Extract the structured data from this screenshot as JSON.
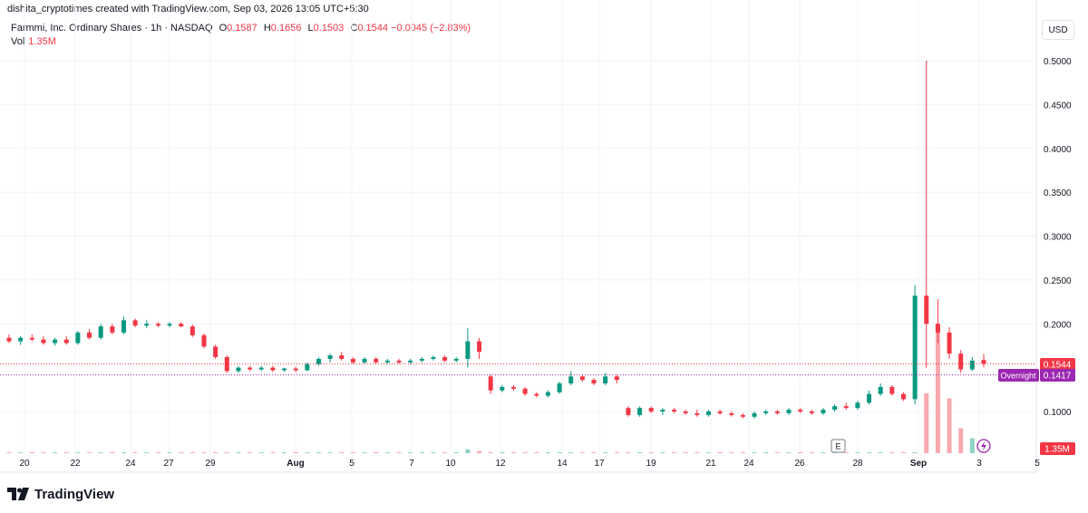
{
  "attribution": "dishita_cryptotimes created with TradingView.com, Sep 03, 2026 13:05 UTC+5:30",
  "legend": {
    "symbol": "Farmmi, Inc. Ordinary Shares · 1h · NASDAQ",
    "open_label": "O",
    "open": "0.1587",
    "high_label": "H",
    "high": "0.1656",
    "low_label": "L",
    "low": "0.1503",
    "close_label": "C",
    "close": "0.1544",
    "change": "−0.0045 (−2.83%)",
    "vol_label": "Vol",
    "vol": "1.35M"
  },
  "currency": "USD",
  "price_axis": {
    "ticks": [
      "0.5000",
      "0.4500",
      "0.4000",
      "0.3500",
      "0.3000",
      "0.2500",
      "0.2000",
      "0.1000"
    ]
  },
  "badges": {
    "last_price": "0.1544",
    "overnight_label": "Overnight",
    "overnight_price": "0.1417",
    "volume": "1.35M"
  },
  "markers": {
    "earnings": "E"
  },
  "brand": "TradingView",
  "colors": {
    "up": "#089981",
    "down": "#f23645",
    "overnight": "#9c27b0",
    "grid": "#f0f3fa"
  },
  "chart_data": {
    "type": "candlestick",
    "title": "Farmmi, Inc. Ordinary Shares · 1h · NASDAQ",
    "x_ticks": [
      "20",
      "22",
      "24",
      "27",
      "29",
      "Aug",
      "5",
      "7",
      "10",
      "12",
      "14",
      "17",
      "19",
      "21",
      "24",
      "26",
      "28",
      "Sep",
      "3",
      "5"
    ],
    "y_range": [
      0.05,
      0.52
    ],
    "last_price": 0.1544,
    "overnight_price": 0.1417,
    "series": [
      {
        "o": 0.184,
        "h": 0.188,
        "l": 0.178,
        "c": 0.18
      },
      {
        "o": 0.18,
        "h": 0.186,
        "l": 0.176,
        "c": 0.184
      },
      {
        "o": 0.184,
        "h": 0.188,
        "l": 0.18,
        "c": 0.182
      },
      {
        "o": 0.182,
        "h": 0.186,
        "l": 0.176,
        "c": 0.178
      },
      {
        "o": 0.178,
        "h": 0.184,
        "l": 0.175,
        "c": 0.182
      },
      {
        "o": 0.182,
        "h": 0.186,
        "l": 0.176,
        "c": 0.178
      },
      {
        "o": 0.178,
        "h": 0.192,
        "l": 0.176,
        "c": 0.19
      },
      {
        "o": 0.19,
        "h": 0.194,
        "l": 0.182,
        "c": 0.184
      },
      {
        "o": 0.184,
        "h": 0.2,
        "l": 0.182,
        "c": 0.197
      },
      {
        "o": 0.197,
        "h": 0.2,
        "l": 0.188,
        "c": 0.19
      },
      {
        "o": 0.19,
        "h": 0.208,
        "l": 0.188,
        "c": 0.204
      },
      {
        "o": 0.204,
        "h": 0.206,
        "l": 0.196,
        "c": 0.198
      },
      {
        "o": 0.198,
        "h": 0.204,
        "l": 0.195,
        "c": 0.2
      },
      {
        "o": 0.2,
        "h": 0.202,
        "l": 0.196,
        "c": 0.198
      },
      {
        "o": 0.198,
        "h": 0.202,
        "l": 0.196,
        "c": 0.2
      },
      {
        "o": 0.2,
        "h": 0.202,
        "l": 0.196,
        "c": 0.197
      },
      {
        "o": 0.197,
        "h": 0.199,
        "l": 0.185,
        "c": 0.187
      },
      {
        "o": 0.187,
        "h": 0.189,
        "l": 0.172,
        "c": 0.174
      },
      {
        "o": 0.174,
        "h": 0.176,
        "l": 0.16,
        "c": 0.162
      },
      {
        "o": 0.162,
        "h": 0.164,
        "l": 0.144,
        "c": 0.146
      },
      {
        "o": 0.146,
        "h": 0.152,
        "l": 0.144,
        "c": 0.15
      },
      {
        "o": 0.15,
        "h": 0.152,
        "l": 0.146,
        "c": 0.148
      },
      {
        "o": 0.148,
        "h": 0.152,
        "l": 0.146,
        "c": 0.15
      },
      {
        "o": 0.15,
        "h": 0.152,
        "l": 0.145,
        "c": 0.147
      },
      {
        "o": 0.147,
        "h": 0.15,
        "l": 0.145,
        "c": 0.149
      },
      {
        "o": 0.149,
        "h": 0.151,
        "l": 0.145,
        "c": 0.147
      },
      {
        "o": 0.147,
        "h": 0.156,
        "l": 0.146,
        "c": 0.154
      },
      {
        "o": 0.154,
        "h": 0.162,
        "l": 0.152,
        "c": 0.16
      },
      {
        "o": 0.16,
        "h": 0.166,
        "l": 0.156,
        "c": 0.164
      },
      {
        "o": 0.164,
        "h": 0.168,
        "l": 0.158,
        "c": 0.16
      },
      {
        "o": 0.16,
        "h": 0.162,
        "l": 0.154,
        "c": 0.156
      },
      {
        "o": 0.156,
        "h": 0.162,
        "l": 0.154,
        "c": 0.16
      },
      {
        "o": 0.16,
        "h": 0.162,
        "l": 0.154,
        "c": 0.156
      },
      {
        "o": 0.156,
        "h": 0.16,
        "l": 0.154,
        "c": 0.158
      },
      {
        "o": 0.158,
        "h": 0.16,
        "l": 0.154,
        "c": 0.156
      },
      {
        "o": 0.156,
        "h": 0.16,
        "l": 0.154,
        "c": 0.158
      },
      {
        "o": 0.158,
        "h": 0.162,
        "l": 0.156,
        "c": 0.16
      },
      {
        "o": 0.16,
        "h": 0.164,
        "l": 0.158,
        "c": 0.162
      },
      {
        "o": 0.162,
        "h": 0.164,
        "l": 0.156,
        "c": 0.158
      },
      {
        "o": 0.158,
        "h": 0.162,
        "l": 0.156,
        "c": 0.16
      },
      {
        "o": 0.16,
        "h": 0.195,
        "l": 0.15,
        "c": 0.18
      },
      {
        "o": 0.18,
        "h": 0.184,
        "l": 0.16,
        "c": 0.168
      },
      {
        "o": 0.14,
        "h": 0.142,
        "l": 0.12,
        "c": 0.124
      },
      {
        "o": 0.124,
        "h": 0.13,
        "l": 0.122,
        "c": 0.128
      },
      {
        "o": 0.128,
        "h": 0.13,
        "l": 0.124,
        "c": 0.126
      },
      {
        "o": 0.126,
        "h": 0.128,
        "l": 0.118,
        "c": 0.12
      },
      {
        "o": 0.12,
        "h": 0.122,
        "l": 0.116,
        "c": 0.118
      },
      {
        "o": 0.118,
        "h": 0.124,
        "l": 0.116,
        "c": 0.122
      },
      {
        "o": 0.122,
        "h": 0.134,
        "l": 0.12,
        "c": 0.132
      },
      {
        "o": 0.132,
        "h": 0.146,
        "l": 0.13,
        "c": 0.14
      },
      {
        "o": 0.14,
        "h": 0.142,
        "l": 0.134,
        "c": 0.136
      },
      {
        "o": 0.136,
        "h": 0.138,
        "l": 0.13,
        "c": 0.132
      },
      {
        "o": 0.132,
        "h": 0.144,
        "l": 0.13,
        "c": 0.14
      },
      {
        "o": 0.14,
        "h": 0.142,
        "l": 0.132,
        "c": 0.136
      },
      {
        "o": 0.104,
        "h": 0.106,
        "l": 0.094,
        "c": 0.096
      },
      {
        "o": 0.096,
        "h": 0.106,
        "l": 0.094,
        "c": 0.104
      },
      {
        "o": 0.104,
        "h": 0.106,
        "l": 0.098,
        "c": 0.1
      },
      {
        "o": 0.1,
        "h": 0.104,
        "l": 0.096,
        "c": 0.102
      },
      {
        "o": 0.102,
        "h": 0.104,
        "l": 0.098,
        "c": 0.1
      },
      {
        "o": 0.1,
        "h": 0.102,
        "l": 0.096,
        "c": 0.098
      },
      {
        "o": 0.098,
        "h": 0.102,
        "l": 0.094,
        "c": 0.096
      },
      {
        "o": 0.096,
        "h": 0.102,
        "l": 0.094,
        "c": 0.1
      },
      {
        "o": 0.1,
        "h": 0.102,
        "l": 0.096,
        "c": 0.098
      },
      {
        "o": 0.098,
        "h": 0.1,
        "l": 0.094,
        "c": 0.096
      },
      {
        "o": 0.096,
        "h": 0.098,
        "l": 0.092,
        "c": 0.094
      },
      {
        "o": 0.094,
        "h": 0.1,
        "l": 0.092,
        "c": 0.098
      },
      {
        "o": 0.098,
        "h": 0.102,
        "l": 0.096,
        "c": 0.1
      },
      {
        "o": 0.1,
        "h": 0.102,
        "l": 0.096,
        "c": 0.098
      },
      {
        "o": 0.098,
        "h": 0.104,
        "l": 0.096,
        "c": 0.102
      },
      {
        "o": 0.102,
        "h": 0.104,
        "l": 0.098,
        "c": 0.1
      },
      {
        "o": 0.1,
        "h": 0.102,
        "l": 0.096,
        "c": 0.098
      },
      {
        "o": 0.098,
        "h": 0.104,
        "l": 0.096,
        "c": 0.102
      },
      {
        "o": 0.102,
        "h": 0.108,
        "l": 0.1,
        "c": 0.106
      },
      {
        "o": 0.106,
        "h": 0.11,
        "l": 0.102,
        "c": 0.104
      },
      {
        "o": 0.104,
        "h": 0.112,
        "l": 0.102,
        "c": 0.11
      },
      {
        "o": 0.11,
        "h": 0.124,
        "l": 0.108,
        "c": 0.12
      },
      {
        "o": 0.12,
        "h": 0.132,
        "l": 0.118,
        "c": 0.128
      },
      {
        "o": 0.128,
        "h": 0.13,
        "l": 0.118,
        "c": 0.12
      },
      {
        "o": 0.12,
        "h": 0.122,
        "l": 0.112,
        "c": 0.114
      },
      {
        "o": 0.114,
        "h": 0.244,
        "l": 0.108,
        "c": 0.232
      },
      {
        "o": 0.232,
        "h": 0.5,
        "l": 0.15,
        "c": 0.2
      },
      {
        "o": 0.2,
        "h": 0.228,
        "l": 0.178,
        "c": 0.19
      },
      {
        "o": 0.19,
        "h": 0.196,
        "l": 0.16,
        "c": 0.166
      },
      {
        "o": 0.166,
        "h": 0.17,
        "l": 0.144,
        "c": 0.148
      },
      {
        "o": 0.148,
        "h": 0.162,
        "l": 0.146,
        "c": 0.158
      },
      {
        "o": 0.1587,
        "h": 0.1656,
        "l": 0.1503,
        "c": 0.1544
      }
    ],
    "volume_millions": [
      0.05,
      0.05,
      0.05,
      0.05,
      0.05,
      0.05,
      0.05,
      0.05,
      0.05,
      0.05,
      0.05,
      0.05,
      0.05,
      0.05,
      0.05,
      0.05,
      0.05,
      0.05,
      0.05,
      0.05,
      0.05,
      0.05,
      0.05,
      0.05,
      0.05,
      0.05,
      0.05,
      0.05,
      0.05,
      0.05,
      0.05,
      0.05,
      0.05,
      0.05,
      0.05,
      0.05,
      0.05,
      0.05,
      0.05,
      0.05,
      0.4,
      0.2,
      0.1,
      0.05,
      0.05,
      0.05,
      0.05,
      0.05,
      0.05,
      0.1,
      0.05,
      0.05,
      0.05,
      0.05,
      0.1,
      0.05,
      0.05,
      0.05,
      0.05,
      0.05,
      0.05,
      0.05,
      0.05,
      0.05,
      0.05,
      0.05,
      0.05,
      0.05,
      0.05,
      0.05,
      0.05,
      0.05,
      0.05,
      0.05,
      0.05,
      0.05,
      0.1,
      0.05,
      0.05,
      0.1,
      6.0,
      13.0,
      5.5,
      2.5,
      1.5,
      1.35
    ]
  }
}
